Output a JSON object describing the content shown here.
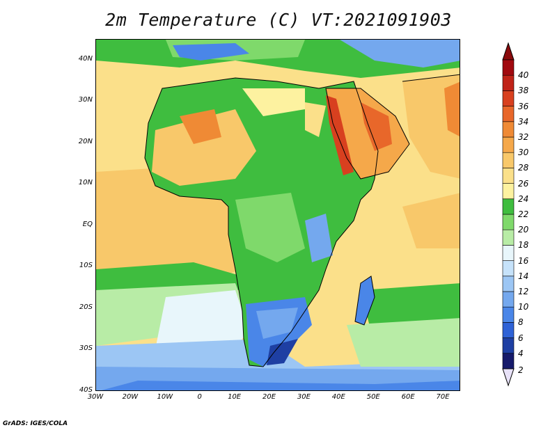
{
  "title": "2m Temperature (C) VT:2021091903",
  "credit": "GrADS: IGES/COLA",
  "map": {
    "lon_range": [
      -30,
      75
    ],
    "lat_range": [
      -40,
      45
    ],
    "lat_ticks": [
      "40N",
      "30N",
      "20N",
      "10N",
      "EQ",
      "10S",
      "20S",
      "30S",
      "40S"
    ],
    "lon_ticks": [
      "30W",
      "20W",
      "10W",
      "0",
      "10E",
      "20E",
      "30E",
      "40E",
      "50E",
      "60E",
      "70E"
    ]
  },
  "colorbar": {
    "levels": [
      "2",
      "4",
      "6",
      "8",
      "10",
      "12",
      "14",
      "16",
      "18",
      "20",
      "22",
      "24",
      "26",
      "28",
      "30",
      "32",
      "34",
      "36",
      "38",
      "40"
    ],
    "colors": [
      "#161a6b",
      "#1e3fa3",
      "#2e62d6",
      "#4a86e8",
      "#74a8ee",
      "#9cc6f4",
      "#c6e2fa",
      "#e8f6fb",
      "#b8eca6",
      "#7fd96b",
      "#3fbd3f",
      "#fdf2a0",
      "#fbe08a",
      "#f8c86a",
      "#f5a84a",
      "#ef8a35",
      "#e8672a",
      "#d8401f",
      "#c02318",
      "#a1090f"
    ],
    "under_color": "#e7e1f7",
    "over_color": "#8a0a0c"
  }
}
